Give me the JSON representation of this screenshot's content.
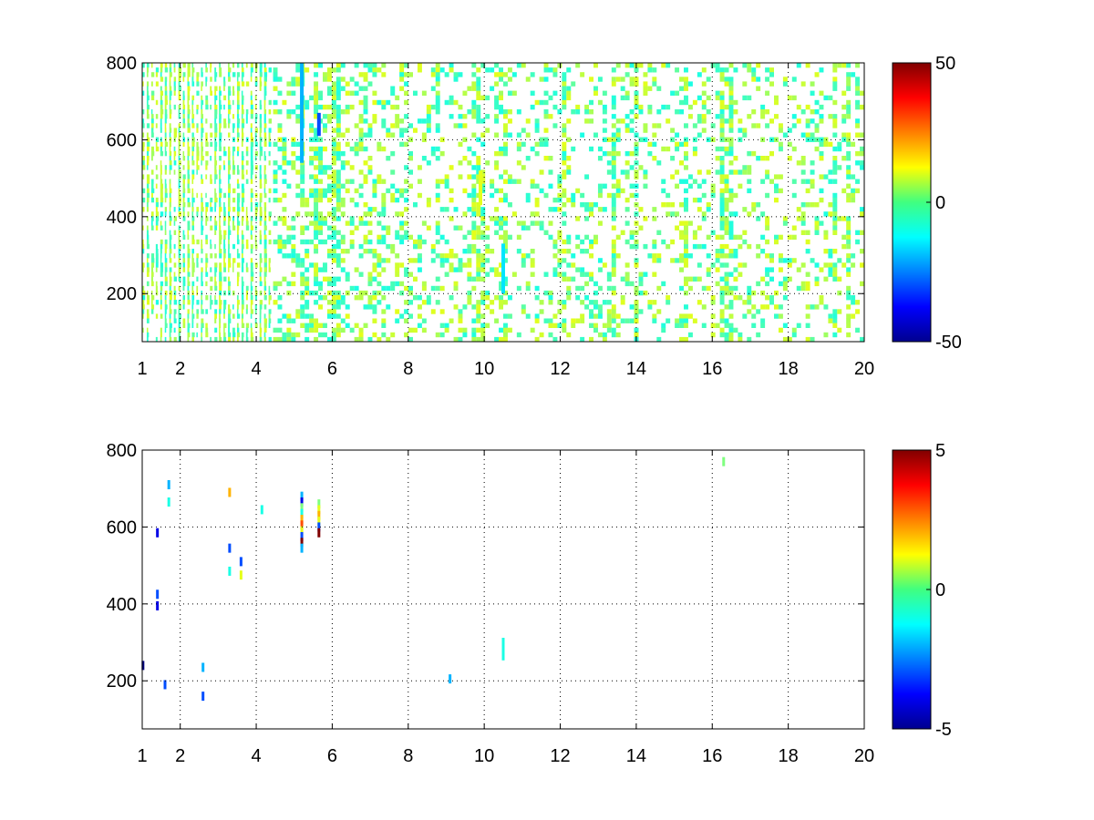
{
  "chart_data": [
    {
      "type": "heatmap",
      "title": "",
      "xlabel": "",
      "ylabel": "",
      "xlim": [
        1,
        20
      ],
      "ylim": [
        75,
        800
      ],
      "xticks": [
        1,
        2,
        4,
        6,
        8,
        10,
        12,
        14,
        16,
        18,
        20
      ],
      "yticks": [
        200,
        400,
        600,
        800
      ],
      "grid": true,
      "colormap": "jet",
      "colorbar": {
        "ticks": [
          -50,
          0,
          50
        ],
        "range": [
          -50,
          50
        ],
        "placement": "right"
      },
      "structure": {
        "description_values": "sparse field of small values, mostly in range -10..10",
        "dense_columns_x": [
          1.2,
          1.5,
          1.7,
          2.0,
          2.3,
          2.6,
          3.0,
          3.3,
          3.6,
          3.9,
          4.2,
          5.2,
          5.6,
          6.1,
          9.8,
          10.0,
          10.5,
          12.1,
          13.4,
          14.0,
          15.3,
          16.3,
          16.5,
          19.2,
          19.6
        ],
        "strong_features": [
          {
            "x": 5.2,
            "y_range": [
              540,
              800
            ],
            "value": -20
          },
          {
            "x": 5.65,
            "y_range": [
              610,
              670
            ],
            "value": -30
          },
          {
            "x": 10.5,
            "y_range": [
              200,
              330
            ],
            "value": -15
          },
          {
            "x": 9.9,
            "y_range": [
              430,
              520
            ],
            "value": 10
          }
        ]
      }
    },
    {
      "type": "heatmap",
      "title": "",
      "xlabel": "",
      "ylabel": "",
      "xlim": [
        1,
        20
      ],
      "ylim": [
        75,
        800
      ],
      "xticks": [
        1,
        2,
        4,
        6,
        8,
        10,
        12,
        14,
        16,
        18,
        20
      ],
      "yticks": [
        200,
        400,
        600,
        800
      ],
      "grid": true,
      "colormap": "jet",
      "colorbar": {
        "ticks": [
          -5,
          0,
          5
        ],
        "range": [
          -5,
          5
        ],
        "placement": "right"
      },
      "points": [
        {
          "x": 1.02,
          "y": 240,
          "value": -5
        },
        {
          "x": 1.4,
          "y": 585,
          "value": -4
        },
        {
          "x": 1.4,
          "y": 395,
          "value": -4
        },
        {
          "x": 1.4,
          "y": 425,
          "value": -3
        },
        {
          "x": 1.6,
          "y": 190,
          "value": -3
        },
        {
          "x": 1.7,
          "y": 710,
          "value": -2
        },
        {
          "x": 1.7,
          "y": 665,
          "value": -1
        },
        {
          "x": 2.6,
          "y": 235,
          "value": -2
        },
        {
          "x": 2.6,
          "y": 160,
          "value": -3
        },
        {
          "x": 3.3,
          "y": 690,
          "value": 2
        },
        {
          "x": 3.3,
          "y": 545,
          "value": -3
        },
        {
          "x": 3.3,
          "y": 485,
          "value": -1
        },
        {
          "x": 3.6,
          "y": 510,
          "value": -3
        },
        {
          "x": 3.6,
          "y": 475,
          "value": 1
        },
        {
          "x": 4.15,
          "y": 645,
          "value": -1
        },
        {
          "x": 5.2,
          "y": 680,
          "value": -2
        },
        {
          "x": 5.2,
          "y": 665,
          "value": -4
        },
        {
          "x": 5.2,
          "y": 650,
          "value": 0
        },
        {
          "x": 5.2,
          "y": 635,
          "value": -1
        },
        {
          "x": 5.2,
          "y": 620,
          "value": 2
        },
        {
          "x": 5.2,
          "y": 605,
          "value": 3
        },
        {
          "x": 5.2,
          "y": 590,
          "value": 1
        },
        {
          "x": 5.2,
          "y": 575,
          "value": -3
        },
        {
          "x": 5.2,
          "y": 560,
          "value": 5
        },
        {
          "x": 5.2,
          "y": 545,
          "value": -2
        },
        {
          "x": 5.65,
          "y": 660,
          "value": 0
        },
        {
          "x": 5.65,
          "y": 645,
          "value": 1
        },
        {
          "x": 5.65,
          "y": 630,
          "value": 2
        },
        {
          "x": 5.65,
          "y": 615,
          "value": 1
        },
        {
          "x": 5.65,
          "y": 600,
          "value": -3
        },
        {
          "x": 5.65,
          "y": 585,
          "value": 5
        },
        {
          "x": 9.1,
          "y": 205,
          "value": -2
        },
        {
          "x": 10.5,
          "y": 300,
          "value": -1
        },
        {
          "x": 10.5,
          "y": 285,
          "value": -1
        },
        {
          "x": 10.5,
          "y": 265,
          "value": -1
        },
        {
          "x": 16.3,
          "y": 770,
          "value": 0
        }
      ]
    }
  ]
}
